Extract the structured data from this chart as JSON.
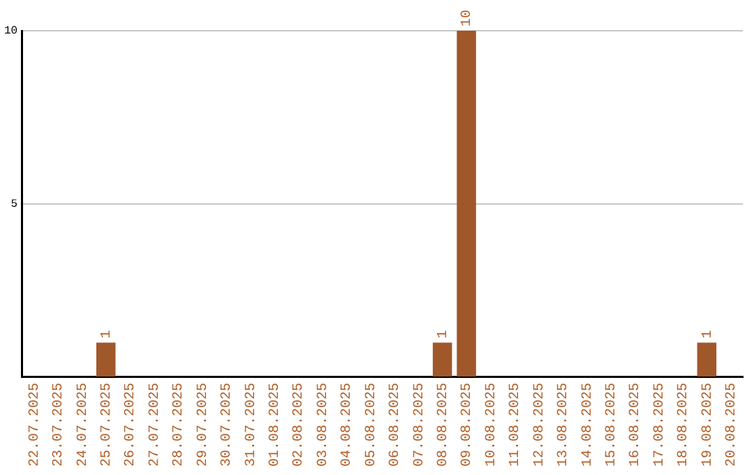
{
  "chart_data": {
    "type": "bar",
    "categories": [
      "22.07.2025",
      "23.07.2025",
      "24.07.2025",
      "25.07.2025",
      "26.07.2025",
      "27.07.2025",
      "28.07.2025",
      "29.07.2025",
      "30.07.2025",
      "31.07.2025",
      "01.08.2025",
      "02.08.2025",
      "03.08.2025",
      "04.08.2025",
      "05.08.2025",
      "06.08.2025",
      "07.08.2025",
      "08.08.2025",
      "09.08.2025",
      "10.08.2025",
      "11.08.2025",
      "12.08.2025",
      "13.08.2025",
      "14.08.2025",
      "15.08.2025",
      "16.08.2025",
      "17.08.2025",
      "18.08.2025",
      "19.08.2025",
      "20.08.2025"
    ],
    "values": [
      0,
      0,
      0,
      1,
      0,
      0,
      0,
      0,
      0,
      0,
      0,
      0,
      0,
      0,
      0,
      0,
      0,
      1,
      10,
      0,
      0,
      0,
      0,
      0,
      0,
      0,
      0,
      0,
      1,
      0
    ],
    "value_labels": [
      null,
      null,
      null,
      "1",
      null,
      null,
      null,
      null,
      null,
      null,
      null,
      null,
      null,
      null,
      null,
      null,
      null,
      "1",
      "10",
      null,
      null,
      null,
      null,
      null,
      null,
      null,
      null,
      null,
      "1",
      null
    ],
    "color": "#a0572a",
    "ylim": [
      0,
      10
    ],
    "yticks": [
      {
        "value": 0,
        "label": null
      },
      5,
      10
    ],
    "grid": "y",
    "legend": false
  }
}
